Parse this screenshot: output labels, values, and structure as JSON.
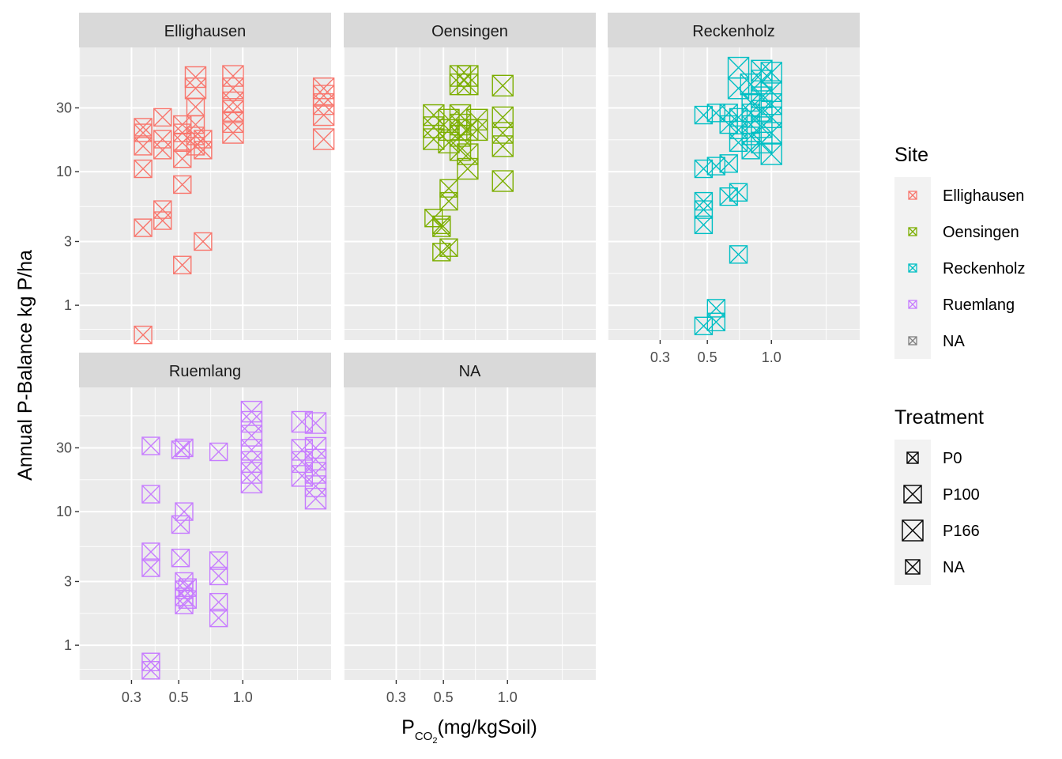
{
  "chart_data": {
    "type": "scatter",
    "title": "",
    "xlabel": {
      "main": "P",
      "sub": "CO",
      "subsub": "2",
      "rest": "(mg/kgSoil)"
    },
    "ylabel": "Annual P-Balance kg P/ha",
    "x_scale": "log10",
    "y_scale": "log10",
    "xlim": [
      0.17,
      2.6
    ],
    "ylim": [
      0.55,
      85
    ],
    "x_ticks": [
      0.3,
      0.5,
      1.0
    ],
    "x_tick_labels": [
      "0.3",
      "0.5",
      "1.0"
    ],
    "y_ticks": [
      1,
      3,
      10,
      30
    ],
    "y_tick_labels": [
      "1",
      "3",
      "10",
      "30"
    ],
    "grid": true,
    "facets": [
      "Ellighausen",
      "Oensingen",
      "Reckenholz",
      "Ruemlang",
      "NA"
    ],
    "colors": {
      "Ellighausen": "#F8766D",
      "Oensingen": "#7CAE00",
      "Reckenholz": "#00BFC4",
      "Ruemlang": "#C77CFF",
      "NA": "#7F7F7F"
    },
    "legend_site": {
      "title": "Site",
      "entries": [
        "Ellighausen",
        "Oensingen",
        "Reckenholz",
        "Ruemlang",
        "NA"
      ]
    },
    "legend_treatment": {
      "title": "Treatment",
      "entries": [
        "P0",
        "P100",
        "P166",
        "NA"
      ]
    },
    "treatment_symbol_size": {
      "P0": 7,
      "P100": 11,
      "P166": 13,
      "NA": 9
    },
    "legend_placement": "right",
    "series": [
      {
        "name": "Ellighausen",
        "points": [
          [
            0.34,
            0.6,
            "P100"
          ],
          [
            0.34,
            3.8,
            "P100"
          ],
          [
            0.34,
            10.5,
            "P100"
          ],
          [
            0.34,
            15.5,
            "P100"
          ],
          [
            0.34,
            19.5,
            "P100"
          ],
          [
            0.34,
            21.5,
            "P100"
          ],
          [
            0.42,
            4.3,
            "P100"
          ],
          [
            0.42,
            5.2,
            "P100"
          ],
          [
            0.42,
            14.5,
            "P100"
          ],
          [
            0.42,
            17.5,
            "P100"
          ],
          [
            0.42,
            25.5,
            "P100"
          ],
          [
            0.52,
            2.0,
            "P100"
          ],
          [
            0.52,
            8.0,
            "P100"
          ],
          [
            0.52,
            12.5,
            "P100"
          ],
          [
            0.52,
            16.5,
            "P100"
          ],
          [
            0.52,
            19.5,
            "P100"
          ],
          [
            0.52,
            22.5,
            "P100"
          ],
          [
            0.6,
            15.5,
            "P100"
          ],
          [
            0.6,
            18.5,
            "P100"
          ],
          [
            0.6,
            22.5,
            "P100"
          ],
          [
            0.6,
            30.5,
            "P100"
          ],
          [
            0.6,
            42,
            "P166"
          ],
          [
            0.6,
            51,
            "P166"
          ],
          [
            0.65,
            3.0,
            "P100"
          ],
          [
            0.65,
            14.5,
            "P100"
          ],
          [
            0.65,
            17.5,
            "P100"
          ],
          [
            0.9,
            19.5,
            "P166"
          ],
          [
            0.9,
            23.5,
            "P166"
          ],
          [
            0.9,
            28.5,
            "P166"
          ],
          [
            0.9,
            33,
            "P166"
          ],
          [
            0.9,
            42,
            "P166"
          ],
          [
            0.9,
            52,
            "P166"
          ],
          [
            2.4,
            17.5,
            "P166"
          ],
          [
            2.4,
            26.5,
            "P166"
          ],
          [
            2.4,
            32,
            "P166"
          ],
          [
            2.4,
            37,
            "P166"
          ],
          [
            2.4,
            42,
            "P166"
          ]
        ]
      },
      {
        "name": "Oensingen",
        "points": [
          [
            0.45,
            4.5,
            "P100"
          ],
          [
            0.45,
            17.5,
            "P166"
          ],
          [
            0.45,
            21.5,
            "P166"
          ],
          [
            0.45,
            26.5,
            "P166"
          ],
          [
            0.49,
            3.8,
            "P100"
          ],
          [
            0.49,
            2.5,
            "P100"
          ],
          [
            0.49,
            4.0,
            "P100"
          ],
          [
            0.53,
            2.7,
            "P100"
          ],
          [
            0.53,
            6.0,
            "P100"
          ],
          [
            0.53,
            7.5,
            "P100"
          ],
          [
            0.53,
            16.5,
            "P166"
          ],
          [
            0.53,
            20.5,
            "P166"
          ],
          [
            0.53,
            24.5,
            "P166"
          ],
          [
            0.6,
            14.5,
            "P166"
          ],
          [
            0.6,
            18.5,
            "P166"
          ],
          [
            0.6,
            22.5,
            "P166"
          ],
          [
            0.6,
            26.5,
            "P166"
          ],
          [
            0.6,
            45,
            "P166"
          ],
          [
            0.6,
            52,
            "P166"
          ],
          [
            0.65,
            10.5,
            "P166"
          ],
          [
            0.65,
            13.5,
            "P166"
          ],
          [
            0.65,
            20.5,
            "P166"
          ],
          [
            0.65,
            45,
            "P166"
          ],
          [
            0.65,
            52,
            "P166"
          ],
          [
            0.72,
            20.5,
            "P166"
          ],
          [
            0.72,
            24.5,
            "P166"
          ],
          [
            0.95,
            8.5,
            "P166"
          ],
          [
            0.95,
            15.5,
            "P166"
          ],
          [
            0.95,
            19.5,
            "P166"
          ],
          [
            0.95,
            25.5,
            "P166"
          ],
          [
            0.95,
            44,
            "P166"
          ]
        ]
      },
      {
        "name": "Reckenholz",
        "points": [
          [
            0.48,
            0.7,
            "P100"
          ],
          [
            0.48,
            4.0,
            "P100"
          ],
          [
            0.48,
            5.2,
            "P100"
          ],
          [
            0.48,
            6.0,
            "P100"
          ],
          [
            0.48,
            10.5,
            "P100"
          ],
          [
            0.48,
            26.5,
            "P100"
          ],
          [
            0.55,
            0.75,
            "P100"
          ],
          [
            0.55,
            0.95,
            "P100"
          ],
          [
            0.55,
            11.0,
            "P100"
          ],
          [
            0.55,
            27.5,
            "P100"
          ],
          [
            0.63,
            6.5,
            "P100"
          ],
          [
            0.63,
            11.5,
            "P100"
          ],
          [
            0.63,
            22.5,
            "P100"
          ],
          [
            0.63,
            27.5,
            "P100"
          ],
          [
            0.7,
            2.4,
            "P100"
          ],
          [
            0.7,
            7.0,
            "P100"
          ],
          [
            0.7,
            16.5,
            "P100"
          ],
          [
            0.7,
            20.5,
            "P100"
          ],
          [
            0.7,
            25.5,
            "P100"
          ],
          [
            0.7,
            42,
            "P166"
          ],
          [
            0.7,
            60,
            "P166"
          ],
          [
            0.8,
            14.5,
            "P100"
          ],
          [
            0.8,
            18.5,
            "P100"
          ],
          [
            0.8,
            22.5,
            "P100"
          ],
          [
            0.8,
            27.5,
            "P100"
          ],
          [
            0.8,
            33,
            "P100"
          ],
          [
            0.8,
            45,
            "P166"
          ],
          [
            0.9,
            16.5,
            "P166"
          ],
          [
            0.9,
            21.5,
            "P166"
          ],
          [
            0.9,
            28.5,
            "P166"
          ],
          [
            0.9,
            36,
            "P166"
          ],
          [
            0.9,
            48,
            "P166"
          ],
          [
            0.9,
            57,
            "P166"
          ],
          [
            1.0,
            13.5,
            "P166"
          ],
          [
            1.0,
            19.5,
            "P166"
          ],
          [
            1.0,
            25.5,
            "P166"
          ],
          [
            1.0,
            32,
            "P166"
          ],
          [
            1.0,
            40,
            "P166"
          ],
          [
            1.0,
            55,
            "P166"
          ]
        ]
      },
      {
        "name": "Ruemlang",
        "points": [
          [
            0.37,
            0.65,
            "P100"
          ],
          [
            0.37,
            0.75,
            "P100"
          ],
          [
            0.37,
            3.8,
            "P100"
          ],
          [
            0.37,
            5.0,
            "P100"
          ],
          [
            0.37,
            13.5,
            "P100"
          ],
          [
            0.37,
            31,
            "P100"
          ],
          [
            0.51,
            4.5,
            "P100"
          ],
          [
            0.51,
            8.0,
            "P100"
          ],
          [
            0.51,
            29,
            "P100"
          ],
          [
            0.53,
            2.0,
            "P100"
          ],
          [
            0.53,
            2.3,
            "P100"
          ],
          [
            0.53,
            2.6,
            "P100"
          ],
          [
            0.53,
            3.0,
            "P100"
          ],
          [
            0.53,
            10.0,
            "P100"
          ],
          [
            0.53,
            30,
            "P100"
          ],
          [
            0.55,
            2.2,
            "P100"
          ],
          [
            0.55,
            2.7,
            "P100"
          ],
          [
            0.77,
            1.6,
            "P100"
          ],
          [
            0.77,
            2.1,
            "P100"
          ],
          [
            0.77,
            3.3,
            "P100"
          ],
          [
            0.77,
            4.3,
            "P100"
          ],
          [
            0.77,
            28,
            "P100"
          ],
          [
            1.1,
            16.5,
            "P166"
          ],
          [
            1.1,
            19.5,
            "P166"
          ],
          [
            1.1,
            23.5,
            "P166"
          ],
          [
            1.1,
            29,
            "P166"
          ],
          [
            1.1,
            37,
            "P166"
          ],
          [
            1.1,
            47,
            "P166"
          ],
          [
            1.1,
            56,
            "P166"
          ],
          [
            1.9,
            18.5,
            "P166"
          ],
          [
            1.9,
            23.5,
            "P166"
          ],
          [
            1.9,
            29,
            "P166"
          ],
          [
            1.9,
            47,
            "P166"
          ],
          [
            2.2,
            12.5,
            "P166"
          ],
          [
            2.2,
            15.5,
            "P166"
          ],
          [
            2.2,
            19.5,
            "P166"
          ],
          [
            2.2,
            24.5,
            "P166"
          ],
          [
            2.2,
            30,
            "P166"
          ],
          [
            2.2,
            46,
            "P166"
          ]
        ]
      },
      {
        "name": "NA",
        "points": []
      }
    ]
  }
}
